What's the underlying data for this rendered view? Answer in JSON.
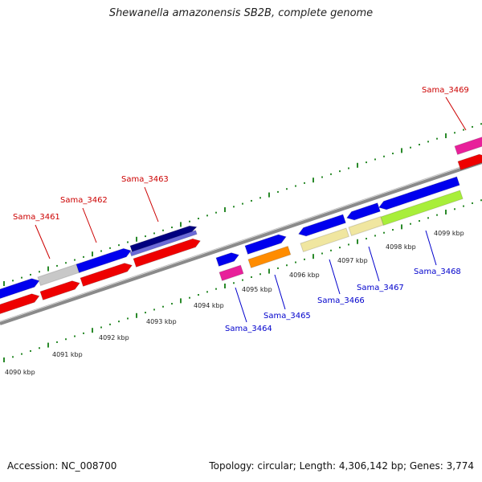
{
  "title": "Shewanella amazonensis SB2B, complete genome",
  "footer": {
    "accession": "Accession: NC_008700",
    "stats": "Topology: circular; Length: 4,306,142 bp; Genes: 3,774"
  },
  "colors": {
    "backbone": "#8a8a8a",
    "tick": "#2a8a2a",
    "label_top": "#cc0000",
    "label_bottom": "#0000cc",
    "blue": "#0000ee",
    "red": "#ee0000",
    "gray": "#c8c8c8",
    "navy": "#000080",
    "lavender": "#6a6ad8",
    "pink": "#e8209a",
    "orange": "#ff8c00",
    "khaki": "#f0e6a0",
    "lime": "#a8ee3a"
  },
  "scale_labels": [
    "4090 kbp",
    "4091 kbp",
    "4092 kbp",
    "4093 kbp",
    "4094 kbp",
    "4095 kbp",
    "4096 kbp",
    "4097 kbp",
    "4098 kbp",
    "4099 kbp"
  ],
  "gene_labels": [
    {
      "name": "Sama_3461",
      "side": "top"
    },
    {
      "name": "Sama_3462",
      "side": "top"
    },
    {
      "name": "Sama_3463",
      "side": "top"
    },
    {
      "name": "Sama_3464",
      "side": "bottom"
    },
    {
      "name": "Sama_3465",
      "side": "bottom"
    },
    {
      "name": "Sama_3466",
      "side": "bottom"
    },
    {
      "name": "Sama_3467",
      "side": "bottom"
    },
    {
      "name": "Sama_3468",
      "side": "bottom"
    },
    {
      "name": "Sama_3469",
      "side": "top"
    }
  ]
}
